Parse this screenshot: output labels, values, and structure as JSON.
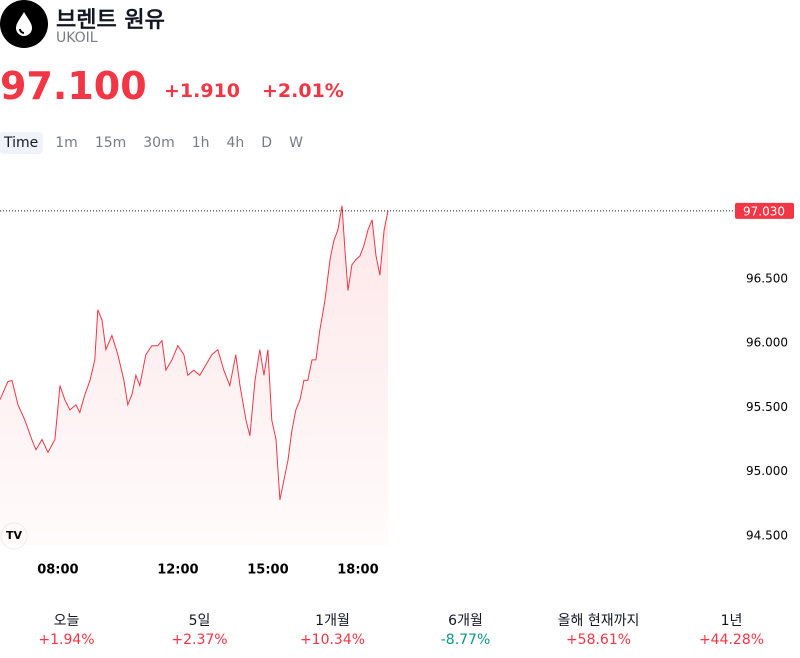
{
  "header": {
    "title": "브렌트 원유",
    "symbol": "UKOIL"
  },
  "quote": {
    "price": "97.100",
    "change": "+1.910",
    "change_pct": "+2.01%"
  },
  "timeframes": [
    "Time",
    "1m",
    "15m",
    "30m",
    "1h",
    "4h",
    "D",
    "W"
  ],
  "chart_data": {
    "type": "area",
    "color": "#f23645",
    "x": [
      6.07,
      6.33,
      6.47,
      6.67,
      6.9,
      7.13,
      7.27,
      7.47,
      7.67,
      7.9,
      8.07,
      8.23,
      8.4,
      8.6,
      8.73,
      8.9,
      9.07,
      9.23,
      9.33,
      9.47,
      9.6,
      9.8,
      10,
      10.2,
      10.33,
      10.47,
      10.6,
      10.73,
      10.93,
      11.13,
      11.33,
      11.47,
      11.6,
      11.8,
      12,
      12.2,
      12.33,
      12.53,
      12.73,
      12.93,
      13.13,
      13.33,
      13.53,
      13.73,
      13.93,
      14.07,
      14.27,
      14.4,
      14.57,
      14.73,
      14.87,
      15,
      15.13,
      15.27,
      15.4,
      15.53,
      15.67,
      15.8,
      15.93,
      16.07,
      16.2,
      16.33,
      16.47,
      16.6,
      16.73,
      16.9,
      17.07,
      17.2,
      17.33,
      17.47,
      17.57,
      17.67,
      17.8,
      17.93,
      18.07,
      18.2,
      18.33,
      18.47,
      18.6,
      18.73,
      18.87,
      19
    ],
    "values": [
      95.56,
      95.7,
      95.71,
      95.52,
      95.4,
      95.25,
      95.17,
      95.25,
      95.15,
      95.25,
      95.67,
      95.56,
      95.48,
      95.52,
      95.46,
      95.6,
      95.71,
      95.87,
      96.26,
      96.18,
      95.95,
      96.06,
      95.91,
      95.71,
      95.52,
      95.6,
      95.75,
      95.67,
      95.91,
      95.98,
      95.98,
      96.02,
      95.79,
      95.87,
      95.98,
      95.91,
      95.75,
      95.79,
      95.75,
      95.83,
      95.91,
      95.95,
      95.79,
      95.67,
      95.91,
      95.67,
      95.4,
      95.28,
      95.71,
      95.95,
      95.75,
      95.95,
      95.4,
      95.25,
      94.78,
      94.93,
      95.09,
      95.32,
      95.48,
      95.56,
      95.71,
      95.71,
      95.87,
      95.87,
      96.1,
      96.33,
      96.65,
      96.8,
      96.88,
      97.07,
      96.72,
      96.41,
      96.61,
      96.65,
      96.68,
      96.76,
      96.88,
      96.96,
      96.68,
      96.53,
      96.88,
      97.03
    ],
    "xlim": [
      6.07,
      30.4
    ],
    "ylim": [
      94.39,
      97.27
    ],
    "xticks": [
      {
        "value": 8,
        "label": "08:00"
      },
      {
        "value": 12,
        "label": "12:00"
      },
      {
        "value": 15,
        "label": "15:00"
      },
      {
        "value": 18,
        "label": "18:00"
      }
    ],
    "yticks": [
      {
        "value": 94.5,
        "label": "94.500"
      },
      {
        "value": 95,
        "label": "95.000"
      },
      {
        "value": 95.5,
        "label": "95.500"
      },
      {
        "value": 96,
        "label": "96.000"
      },
      {
        "value": 96.5,
        "label": "96.500"
      }
    ],
    "last_price": {
      "value": 97.03,
      "label": "97.030"
    }
  },
  "performance": [
    {
      "period": "오늘",
      "change": "+1.94%",
      "color": "#f23645"
    },
    {
      "period": "5일",
      "change": "+2.37%",
      "color": "#f23645"
    },
    {
      "period": "1개월",
      "change": "+10.34%",
      "color": "#f23645"
    },
    {
      "period": "6개월",
      "change": "-8.77%",
      "color": "#089981"
    },
    {
      "period": "올해 현재까지",
      "change": "+58.61%",
      "color": "#f23645"
    },
    {
      "period": "1년",
      "change": "+44.28%",
      "color": "#f23645"
    }
  ]
}
